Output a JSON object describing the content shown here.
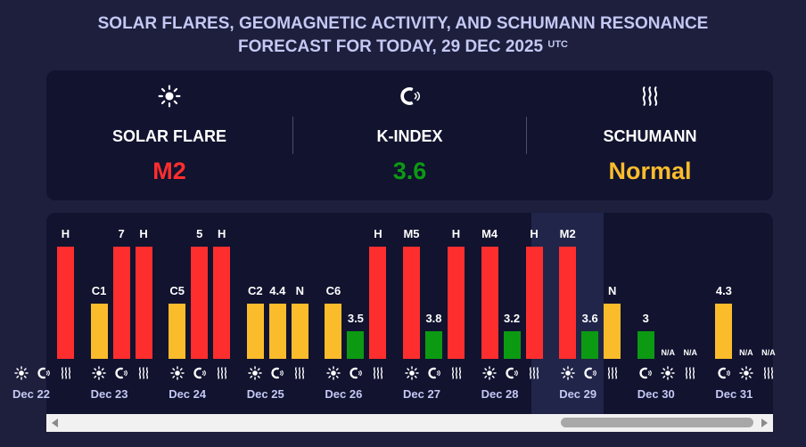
{
  "header": {
    "title_line1": "SOLAR FLARES, GEOMAGNETIC ACTIVITY, AND SCHUMANN RESONANCE",
    "title_line2": "FORECAST FOR TODAY, 29 DEC 2025",
    "title_tz": "UTC"
  },
  "summary": {
    "solar_flare": {
      "label": "SOLAR FLARE",
      "value": "M2",
      "color": "#ff2e2e",
      "icon": "sun-icon"
    },
    "k_index": {
      "label": "K-INDEX",
      "value": "3.6",
      "color": "#0b9a12",
      "icon": "magnet-icon"
    },
    "schumann": {
      "label": "SCHUMANN",
      "value": "Normal",
      "color": "#fbbc2c",
      "icon": "waves-icon"
    }
  },
  "colors": {
    "red": "#ff2e2e",
    "yellow": "#fbbc2c",
    "green": "#0b9a12",
    "date_text": "#c4c8f3"
  },
  "chart_data": {
    "type": "bar",
    "bar_levels": {
      "high": 3,
      "medium": 2,
      "low": 1,
      "none": 0
    },
    "days": [
      {
        "date": "Dec 22",
        "partial": true,
        "bars": [
          {
            "label": "",
            "level": 0,
            "color": "red"
          },
          {
            "label": "",
            "level": 0,
            "color": "yellow"
          },
          {
            "label": "H",
            "level": 3,
            "color": "red"
          }
        ]
      },
      {
        "date": "Dec 23",
        "bars": [
          {
            "label": "C1",
            "level": 2,
            "color": "yellow"
          },
          {
            "label": "7",
            "level": 3,
            "color": "red"
          },
          {
            "label": "H",
            "level": 3,
            "color": "red"
          }
        ]
      },
      {
        "date": "Dec 24",
        "bars": [
          {
            "label": "C5",
            "level": 2,
            "color": "yellow"
          },
          {
            "label": "5",
            "level": 3,
            "color": "red"
          },
          {
            "label": "H",
            "level": 3,
            "color": "red"
          }
        ]
      },
      {
        "date": "Dec 25",
        "bars": [
          {
            "label": "C2",
            "level": 2,
            "color": "yellow"
          },
          {
            "label": "4.4",
            "level": 2,
            "color": "yellow"
          },
          {
            "label": "N",
            "level": 2,
            "color": "yellow"
          }
        ]
      },
      {
        "date": "Dec 26",
        "bars": [
          {
            "label": "C6",
            "level": 2,
            "color": "yellow"
          },
          {
            "label": "3.5",
            "level": 1,
            "color": "green"
          },
          {
            "label": "H",
            "level": 3,
            "color": "red"
          }
        ]
      },
      {
        "date": "Dec 27",
        "bars": [
          {
            "label": "M5",
            "level": 3,
            "color": "red"
          },
          {
            "label": "3.8",
            "level": 1,
            "color": "green"
          },
          {
            "label": "H",
            "level": 3,
            "color": "red"
          }
        ]
      },
      {
        "date": "Dec 28",
        "bars": [
          {
            "label": "M4",
            "level": 3,
            "color": "red"
          },
          {
            "label": "3.2",
            "level": 1,
            "color": "green"
          },
          {
            "label": "H",
            "level": 3,
            "color": "red"
          }
        ]
      },
      {
        "date": "Dec 29",
        "today": true,
        "bars": [
          {
            "label": "M2",
            "level": 3,
            "color": "red"
          },
          {
            "label": "3.6",
            "level": 1,
            "color": "green"
          },
          {
            "label": "N",
            "level": 2,
            "color": "yellow"
          }
        ]
      },
      {
        "date": "Dec 30",
        "order": [
          "magnet",
          "sun",
          "waves"
        ],
        "bars": [
          {
            "label": "3",
            "level": 1,
            "color": "green"
          },
          {
            "label": "N/A",
            "level": 0,
            "color": "none"
          },
          {
            "label": "N/A",
            "level": 0,
            "color": "none"
          }
        ]
      },
      {
        "date": "Dec 31",
        "order": [
          "magnet",
          "sun",
          "waves"
        ],
        "bars": [
          {
            "label": "4.3",
            "level": 2,
            "color": "yellow"
          },
          {
            "label": "N/A",
            "level": 0,
            "color": "none"
          },
          {
            "label": "N/A",
            "level": 0,
            "color": "none"
          }
        ]
      }
    ]
  }
}
